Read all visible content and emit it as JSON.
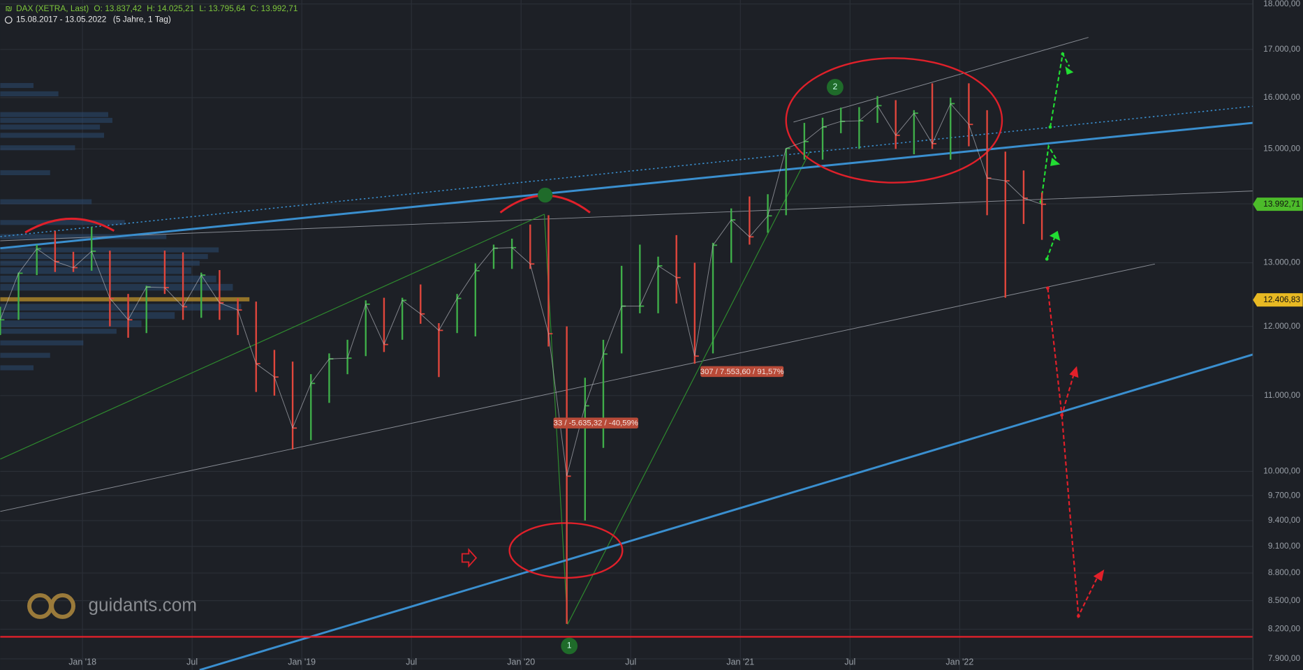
{
  "chart_data": {
    "type": "ohlc",
    "title": "DAX (XETRA, Last)",
    "quote": [
      "O: 13.837,42",
      "H: 14.025,21",
      "L: 13.795,64",
      "C: 13.992,71"
    ],
    "period": "15.08.2017 - 13.05.2022",
    "interval": "(5 Jahre, 1 Tag)",
    "x": [
      "2017-08",
      "2017-09",
      "2017-10",
      "2017-11",
      "2017-12",
      "2018-01",
      "2018-02",
      "2018-03",
      "2018-04",
      "2018-05",
      "2018-06",
      "2018-07",
      "2018-08",
      "2018-09",
      "2018-10",
      "2018-11",
      "2018-12",
      "2019-01",
      "2019-02",
      "2019-03",
      "2019-04",
      "2019-05",
      "2019-06",
      "2019-07",
      "2019-08",
      "2019-09",
      "2019-10",
      "2019-11",
      "2019-12",
      "2020-01",
      "2020-02",
      "2020-03",
      "2020-04",
      "2020-05",
      "2020-06",
      "2020-07",
      "2020-08",
      "2020-09",
      "2020-10",
      "2020-11",
      "2020-12",
      "2021-01",
      "2021-02",
      "2021-03",
      "2021-04",
      "2021-05",
      "2021-06",
      "2021-07",
      "2021-08",
      "2021-09",
      "2021-10",
      "2021-11",
      "2021-12",
      "2022-01",
      "2022-02",
      "2022-03",
      "2022-04",
      "2022-05"
    ],
    "high": [
      12300,
      12840,
      13300,
      13530,
      13180,
      13600,
      13200,
      12500,
      12630,
      13200,
      13170,
      12840,
      12880,
      12430,
      12380,
      11650,
      11480,
      11300,
      11600,
      11800,
      12400,
      12440,
      12440,
      12650,
      12050,
      12500,
      12990,
      13300,
      13400,
      13640,
      13800,
      12000,
      11250,
      11800,
      12950,
      13300,
      13100,
      13460,
      13000,
      13330,
      13920,
      14130,
      14170,
      15010,
      15500,
      15600,
      15800,
      15810,
      16030,
      15950,
      15750,
      16290,
      16000,
      16290,
      15750,
      14950,
      14600,
      14200
    ],
    "low": [
      11870,
      12100,
      12800,
      12850,
      12850,
      12870,
      12000,
      11830,
      11900,
      12500,
      12100,
      12130,
      12100,
      11870,
      11050,
      11000,
      10280,
      10400,
      10900,
      11300,
      11560,
      11620,
      11800,
      12040,
      11260,
      11900,
      11850,
      12900,
      12900,
      12900,
      11700,
      8255,
      9400,
      10300,
      11600,
      12200,
      12200,
      12350,
      11450,
      11600,
      13000,
      13300,
      13500,
      13800,
      14800,
      14800,
      15300,
      15000,
      15500,
      15000,
      14900,
      15000,
      14800,
      15050,
      13800,
      12440,
      13650,
      13380
    ],
    "close": [
      12100,
      12830,
      13230,
      13020,
      12920,
      13190,
      12430,
      12100,
      12610,
      12600,
      12300,
      12800,
      12360,
      12250,
      11450,
      11260,
      10560,
      11170,
      11520,
      11530,
      12340,
      11730,
      12400,
      12190,
      11940,
      12430,
      12870,
      13240,
      13250,
      12980,
      11890,
      9940,
      10860,
      11590,
      12310,
      12310,
      12950,
      12760,
      11560,
      13290,
      13720,
      13430,
      13790,
      15010,
      15140,
      15420,
      15530,
      15540,
      15840,
      15260,
      15690,
      15100,
      15880,
      15470,
      14460,
      14410,
      14100,
      13992.71
    ],
    "xticks": [
      {
        "value": "2018-01",
        "label": "Jan '18"
      },
      {
        "value": "2018-07",
        "label": "Jul"
      },
      {
        "value": "2019-01",
        "label": "Jan '19"
      },
      {
        "value": "2019-07",
        "label": "Jul"
      },
      {
        "value": "2020-01",
        "label": "Jan '20"
      },
      {
        "value": "2020-07",
        "label": "Jul"
      },
      {
        "value": "2021-01",
        "label": "Jan '21"
      },
      {
        "value": "2021-07",
        "label": "Jul"
      },
      {
        "value": "2022-01",
        "label": "Jan '22"
      }
    ],
    "ylim": [
      7790,
      18090
    ],
    "log_scale": true,
    "grid": true,
    "yticks": [
      {
        "value": 18000,
        "label": "18.000,00"
      },
      {
        "value": 17000,
        "label": "17.000,00"
      },
      {
        "value": 16000,
        "label": "16.000,00"
      },
      {
        "value": 15000,
        "label": "15.000,00"
      },
      {
        "value": 14000,
        "label": "14.000,00"
      },
      {
        "value": 13000,
        "label": "13.000,00"
      },
      {
        "value": 12000,
        "label": "12.000,00"
      },
      {
        "value": 11000,
        "label": "11.000,00"
      },
      {
        "value": 10000,
        "label": "10.000,00"
      },
      {
        "value": 9700,
        "label": "9.700,00"
      },
      {
        "value": 9400,
        "label": "9.400,00"
      },
      {
        "value": 9100,
        "label": "9.100,00"
      },
      {
        "value": 8800,
        "label": "8.800,00"
      },
      {
        "value": 8500,
        "label": "8.500,00"
      },
      {
        "value": 8200,
        "label": "8.200,00"
      },
      {
        "value": 7900,
        "label": "7.900,00"
      }
    ],
    "up_color": "#3fae49",
    "down_color": "#e0463c",
    "price_labels": [
      {
        "value": 13992.71,
        "label": "13.992,71",
        "color": "#4cbb2a"
      },
      {
        "value": 12406.83,
        "label": "12.406,83",
        "color": "#e8b923"
      }
    ],
    "annotations": [
      "33 / -5.635,32 / -40,59%",
      "307 / 7.553,60 / 91,57%",
      "1",
      "2"
    ],
    "watermark": "guidants.com"
  }
}
